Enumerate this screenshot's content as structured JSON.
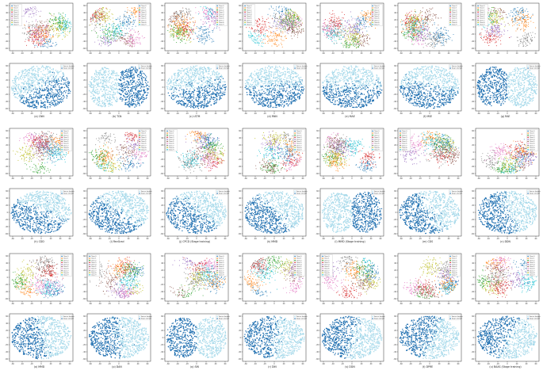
{
  "figure": {
    "rows_of_pairs": 3,
    "columns": 7,
    "captions": [
      [
        "(a) CNN",
        "(b) TCN",
        "(c) LSTM",
        "(d) RNN",
        "(e) MAE",
        "(f) MSE",
        "(g) RAE"
      ],
      [
        "(h) CDD",
        "(i) RevGrad",
        "(j) CPCD (Stage training)",
        "(k) MMD",
        "(l) MMD (Stage training)",
        "(m) CDS",
        "(n) DDN"
      ],
      [
        "(o) MMD",
        "(p) DAN",
        "(q) SIN",
        "(r) DIN",
        "(s) DDN",
        "(t) DPRE",
        "(u) BAAS (Stage training)"
      ]
    ]
  },
  "palette": {
    "class_colors": [
      "#1f77b4",
      "#ff7f0e",
      "#2ca02c",
      "#d62728",
      "#9467bd",
      "#8c564b",
      "#e377c2",
      "#7f7f7f",
      "#bcbd22",
      "#17becf"
    ],
    "source_color": "#a6d9ea",
    "target_color": "#1f6fb0"
  },
  "chart_data": {
    "type": "scatter",
    "description_of_marks": "t-SNE embeddings; top panel of each pair colored by class, bottom panel colored by domain",
    "class_legend_entries": [
      "Class 0",
      "Class 1",
      "Class 2",
      "Class 3",
      "Class 4",
      "Class 5",
      "Class 6",
      "Class 7",
      "Class 8",
      "Class 9"
    ],
    "domain_legend_entries": [
      "Source domain",
      "Target domain"
    ],
    "axis_ticks_x": [
      "-60",
      "-40",
      "-20",
      "0",
      "20",
      "40",
      "60"
    ],
    "axis_ticks_y": [
      "-60",
      "-40",
      "-20",
      "0",
      "20",
      "40",
      "60"
    ]
  }
}
